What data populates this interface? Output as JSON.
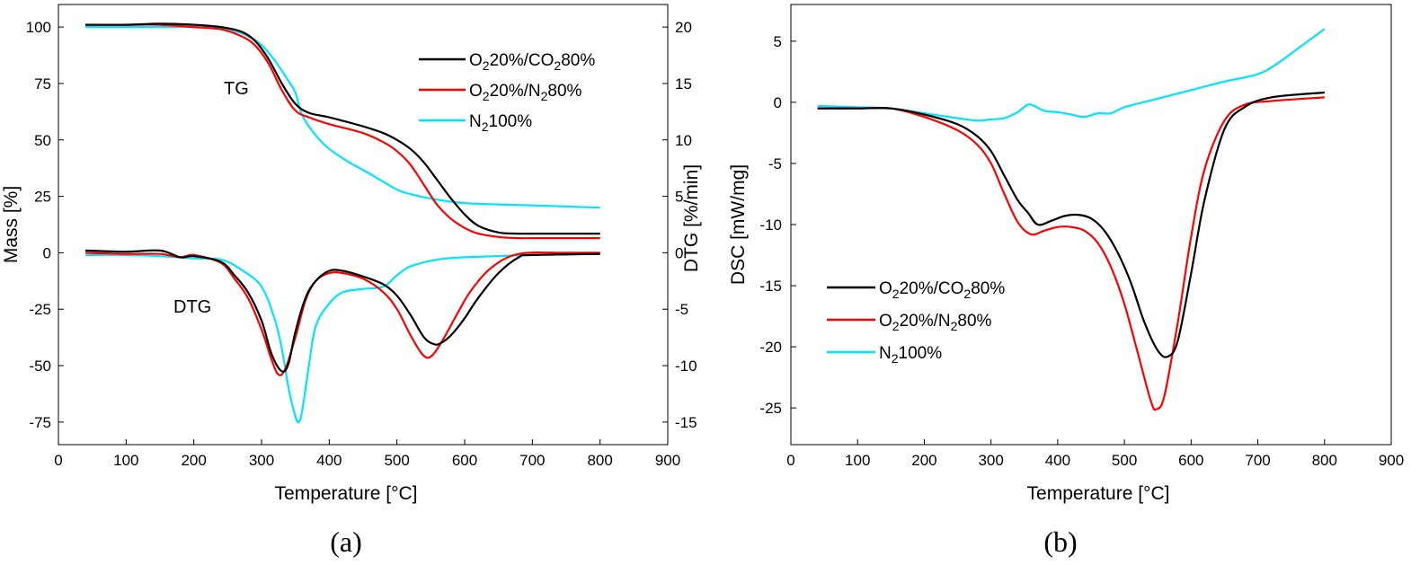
{
  "chart_data": [
    {
      "type": "line",
      "panel_label": "(a)",
      "xlabel": "Temperature [°C]",
      "ylabel": "Mass [%]",
      "y2label": "DTG [%/min]",
      "xlim": [
        0,
        900
      ],
      "ylim": [
        -85,
        110
      ],
      "y2lim": [
        -17,
        22
      ],
      "xticks": [
        0,
        100,
        200,
        300,
        400,
        500,
        600,
        700,
        800,
        900
      ],
      "yticks": [
        -75,
        -50,
        -25,
        0,
        25,
        50,
        75,
        100
      ],
      "y2ticks": [
        -15,
        -10,
        -5,
        0,
        5,
        10,
        15,
        20
      ],
      "grid": false,
      "legend_position": "top-right",
      "annotations": [
        {
          "text": "TG",
          "x": 275,
          "y": 72
        },
        {
          "text": "DTG",
          "x": 210,
          "y": -24
        }
      ],
      "legend": [
        {
          "prefix": "O",
          "sub1": "2",
          "mid": "20%/CO",
          "sub2": "2",
          "suffix": "80%",
          "color": "#000000"
        },
        {
          "prefix": "O",
          "sub1": "2",
          "mid": "20%/N",
          "sub2": "2",
          "suffix": "80%",
          "color": "#ff0000"
        },
        {
          "prefix": "N",
          "sub1": "2",
          "mid": "100%",
          "sub2": "",
          "suffix": "",
          "color": "#00e5ff"
        }
      ],
      "series": [
        {
          "name": "O2 20%/CO2 80%",
          "color": "#000000",
          "axis": "left",
          "kind": "TG",
          "x": [
            40,
            100,
            150,
            200,
            240,
            270,
            290,
            310,
            330,
            350,
            370,
            400,
            450,
            480,
            500,
            520,
            540,
            560,
            580,
            600,
            620,
            650,
            680,
            720,
            800
          ],
          "y": [
            101,
            101,
            101.5,
            101,
            100,
            98,
            94,
            86,
            75,
            66,
            62,
            60,
            56,
            53,
            50,
            46,
            40,
            32,
            24,
            17,
            12,
            9,
            8.5,
            8.5,
            8.5
          ]
        },
        {
          "name": "O2 20%/N2 80%",
          "color": "#ff0000",
          "axis": "left",
          "kind": "TG",
          "x": [
            40,
            100,
            150,
            200,
            240,
            270,
            290,
            310,
            330,
            350,
            370,
            400,
            450,
            480,
            500,
            520,
            540,
            560,
            580,
            600,
            620,
            650,
            680,
            720,
            800
          ],
          "y": [
            101,
            101,
            101,
            100,
            99,
            96,
            92,
            84,
            72,
            63,
            60,
            57,
            53,
            49,
            45,
            39,
            30,
            21,
            15,
            11,
            8.5,
            7,
            6.5,
            6.5,
            6.5
          ]
        },
        {
          "name": "N2 100%",
          "color": "#00e5ff",
          "axis": "left",
          "kind": "TG",
          "x": [
            40,
            100,
            150,
            200,
            250,
            280,
            300,
            320,
            340,
            350,
            360,
            380,
            400,
            430,
            460,
            500,
            520,
            550,
            600,
            700,
            800
          ],
          "y": [
            100,
            100,
            100,
            100,
            99,
            96,
            92,
            85,
            76,
            71,
            61,
            52,
            46,
            40,
            35,
            28,
            26,
            24,
            22,
            21,
            20
          ]
        },
        {
          "name": "O2 20%/CO2 80% DTG",
          "color": "#000000",
          "axis": "right",
          "kind": "DTG",
          "x": [
            40,
            100,
            150,
            180,
            200,
            240,
            260,
            280,
            300,
            315,
            330,
            340,
            350,
            365,
            380,
            400,
            420,
            450,
            480,
            500,
            520,
            540,
            555,
            565,
            580,
            600,
            620,
            650,
            680,
            700,
            800
          ],
          "y": [
            0.2,
            0.1,
            0.2,
            -0.4,
            -0.3,
            -0.8,
            -2,
            -3.5,
            -6,
            -9,
            -10.5,
            -9.8,
            -7,
            -4,
            -2.5,
            -1.6,
            -1.6,
            -2.1,
            -2.8,
            -3.8,
            -5.5,
            -7.5,
            -8.1,
            -8,
            -7.3,
            -5.8,
            -4,
            -1.8,
            -0.4,
            -0.2,
            -0.1
          ]
        },
        {
          "name": "O2 20%/N2 80% DTG",
          "color": "#ff0000",
          "axis": "right",
          "kind": "DTG",
          "x": [
            40,
            100,
            150,
            180,
            200,
            240,
            260,
            280,
            300,
            315,
            325,
            335,
            350,
            365,
            380,
            400,
            420,
            450,
            480,
            500,
            520,
            535,
            545,
            555,
            570,
            590,
            610,
            640,
            680,
            750,
            800
          ],
          "y": [
            0,
            -0.1,
            -0.1,
            -0.4,
            -0.2,
            -0.9,
            -2.3,
            -4,
            -6.8,
            -9.5,
            -10.8,
            -10.3,
            -7.5,
            -4.2,
            -2.5,
            -1.8,
            -1.8,
            -2.3,
            -3.5,
            -5,
            -7.3,
            -8.8,
            -9.3,
            -8.9,
            -7.5,
            -5.3,
            -3.3,
            -1.3,
            -0.1,
            0,
            0
          ]
        },
        {
          "name": "N2 100% DTG",
          "color": "#00e5ff",
          "axis": "right",
          "kind": "DTG",
          "x": [
            40,
            100,
            150,
            200,
            240,
            270,
            300,
            320,
            330,
            340,
            350,
            355,
            360,
            370,
            380,
            400,
            420,
            450,
            480,
            500,
            520,
            560,
            600,
            700,
            800
          ],
          "y": [
            -0.2,
            -0.2,
            -0.3,
            -0.5,
            -0.6,
            -1.5,
            -3,
            -6,
            -8.5,
            -12,
            -14.5,
            -15,
            -14,
            -10,
            -6.5,
            -4.5,
            -3.5,
            -3.2,
            -3,
            -2,
            -1.2,
            -0.6,
            -0.4,
            -0.2,
            -0.1
          ]
        }
      ]
    },
    {
      "type": "line",
      "panel_label": "(b)",
      "xlabel": "Temperature [°C]",
      "ylabel": "DSC [mW/mg]",
      "xlim": [
        0,
        900
      ],
      "ylim": [
        -28,
        8
      ],
      "xticks": [
        0,
        100,
        200,
        300,
        400,
        500,
        600,
        700,
        800,
        900
      ],
      "yticks": [
        -25,
        -20,
        -15,
        -10,
        -5,
        0,
        5
      ],
      "grid": false,
      "legend_position": "lower-left",
      "legend": [
        {
          "prefix": "O",
          "sub1": "2",
          "mid": "20%/CO",
          "sub2": "2",
          "suffix": "80%",
          "color": "#000000"
        },
        {
          "prefix": "O",
          "sub1": "2",
          "mid": "20%/N",
          "sub2": "2",
          "suffix": "80%",
          "color": "#ff0000"
        },
        {
          "prefix": "N",
          "sub1": "2",
          "mid": "100%",
          "sub2": "",
          "suffix": "",
          "color": "#00e5ff"
        }
      ],
      "series": [
        {
          "name": "O2 20%/CO2 80%",
          "color": "#000000",
          "x": [
            40,
            100,
            150,
            200,
            250,
            280,
            300,
            320,
            340,
            355,
            370,
            390,
            410,
            430,
            450,
            470,
            490,
            510,
            530,
            550,
            565,
            580,
            600,
            620,
            650,
            680,
            720,
            800
          ],
          "y": [
            -0.5,
            -0.5,
            -0.5,
            -1.0,
            -1.8,
            -2.8,
            -4,
            -6,
            -8,
            -9,
            -10,
            -9.7,
            -9.3,
            -9.2,
            -9.5,
            -10.5,
            -12.3,
            -14.8,
            -18,
            -20.3,
            -20.8,
            -19.5,
            -14,
            -8,
            -2.2,
            -0.4,
            0.4,
            0.8
          ]
        },
        {
          "name": "O2 20%/N2 80%",
          "color": "#ff0000",
          "x": [
            40,
            100,
            150,
            200,
            250,
            280,
            300,
            320,
            340,
            360,
            380,
            400,
            420,
            440,
            460,
            480,
            500,
            520,
            540,
            548,
            560,
            580,
            600,
            620,
            650,
            680,
            720,
            800
          ],
          "y": [
            -0.5,
            -0.5,
            -0.5,
            -1.2,
            -2.3,
            -3.5,
            -5,
            -7.5,
            -9.8,
            -10.8,
            -10.5,
            -10.2,
            -10.2,
            -10.5,
            -11.5,
            -13.5,
            -16.5,
            -20.5,
            -24.5,
            -25.1,
            -24,
            -18,
            -11,
            -5.5,
            -1.5,
            -0.2,
            0.1,
            0.4
          ]
        },
        {
          "name": "N2 100%",
          "color": "#00e5ff",
          "x": [
            40,
            100,
            150,
            200,
            250,
            280,
            300,
            320,
            340,
            355,
            365,
            380,
            400,
            420,
            440,
            460,
            480,
            500,
            550,
            600,
            650,
            700,
            730,
            760,
            800
          ],
          "y": [
            -0.3,
            -0.4,
            -0.5,
            -0.9,
            -1.3,
            -1.5,
            -1.4,
            -1.3,
            -0.8,
            -0.2,
            -0.3,
            -0.7,
            -0.8,
            -1.0,
            -1.2,
            -0.9,
            -0.9,
            -0.4,
            0.3,
            1.0,
            1.7,
            2.3,
            3.2,
            4.4,
            6.0
          ]
        }
      ]
    }
  ]
}
